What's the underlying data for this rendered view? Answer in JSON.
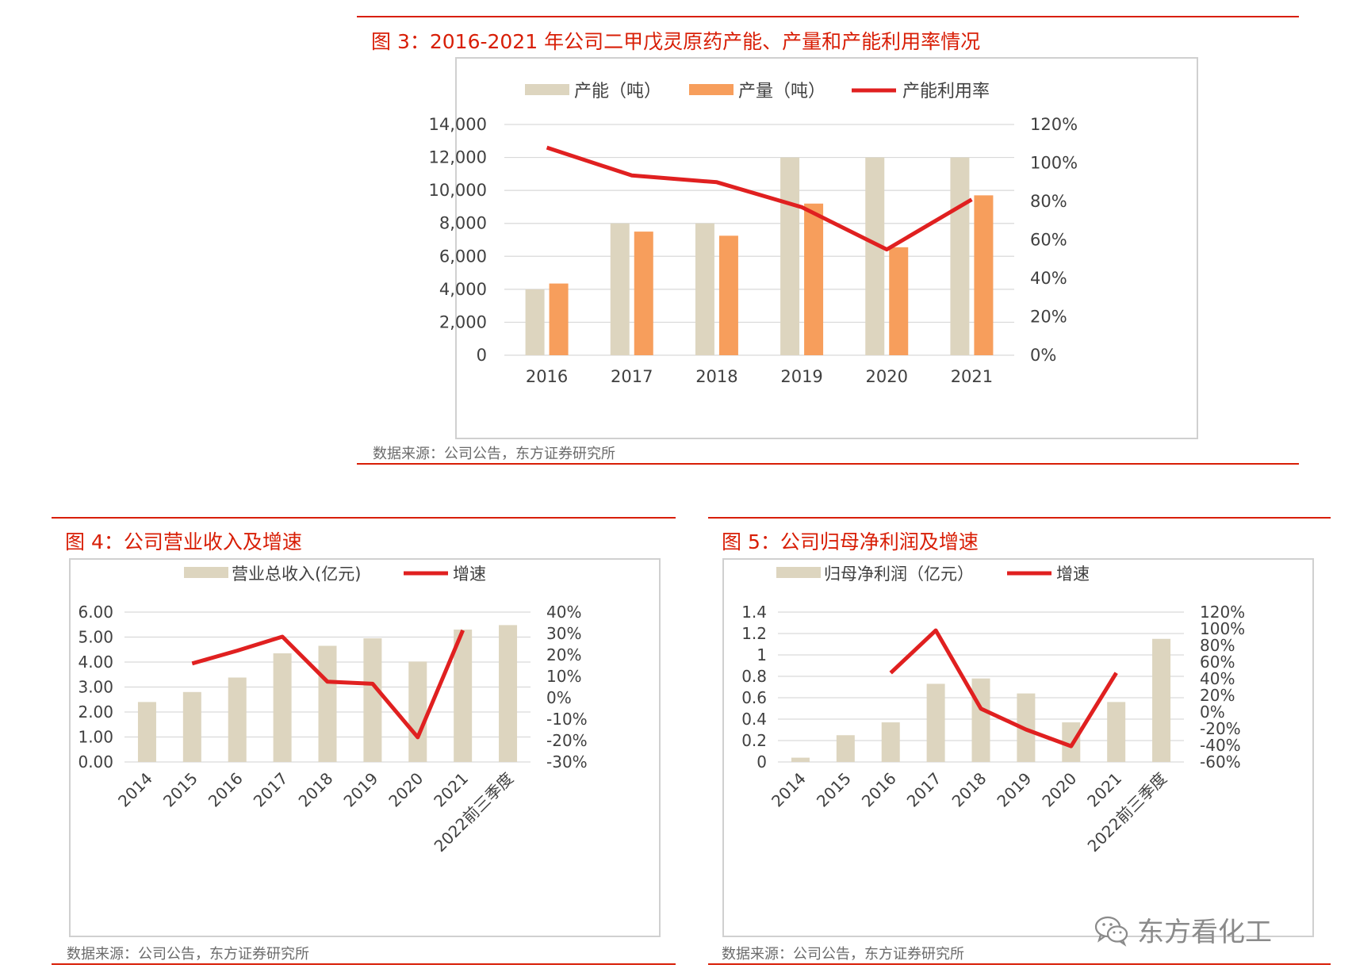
{
  "figures": [
    {
      "title": "图 3：2016-2021 年公司二甲戊灵原药产能、产量和产能利用率情况",
      "source": "数据来源：公司公告，东方证券研究所"
    },
    {
      "title": "图 4：公司营业收入及增速",
      "source": "数据来源：公司公告，东方证券研究所"
    },
    {
      "title": "图 5：公司归母净利润及增速",
      "source": "数据来源：公司公告，东方证券研究所"
    }
  ],
  "watermark": {
    "text": "东方看化工",
    "icon": "wechat-icon"
  },
  "colors": {
    "accent": "#d81e06",
    "bar_primary": "#ddd5bf",
    "bar_secondary": "#f79e5c",
    "line": "#e02020"
  },
  "chart_data": [
    {
      "type": "bar",
      "categories": [
        "2016",
        "2017",
        "2018",
        "2019",
        "2020",
        "2021"
      ],
      "series": [
        {
          "name": "产能（吨）",
          "kind": "bar",
          "axis": "left",
          "color": "#ddd5bf",
          "values": [
            4000,
            8000,
            8000,
            12000,
            12000,
            12000
          ]
        },
        {
          "name": "产量（吨）",
          "kind": "bar",
          "axis": "left",
          "color": "#f79e5c",
          "values": [
            4350,
            7500,
            7250,
            9200,
            6550,
            9700
          ]
        },
        {
          "name": "产能利用率",
          "kind": "line",
          "axis": "right",
          "color": "#e02020",
          "values": [
            108,
            93.5,
            90,
            77,
            55,
            81
          ]
        }
      ],
      "ylim": [
        0,
        14000
      ],
      "yticks": [
        "0",
        "2,000",
        "4,000",
        "6,000",
        "8,000",
        "10,000",
        "12,000",
        "14,000"
      ],
      "y2lim": [
        0,
        120
      ],
      "y2ticks": [
        "0%",
        "20%",
        "40%",
        "60%",
        "80%",
        "100%",
        "120%"
      ],
      "legend": "top",
      "grid": true
    },
    {
      "type": "bar",
      "categories": [
        "2014",
        "2015",
        "2016",
        "2017",
        "2018",
        "2019",
        "2020",
        "2021",
        "2022前三季度"
      ],
      "series": [
        {
          "name": "营业总收入(亿元)",
          "kind": "bar",
          "axis": "left",
          "color": "#ddd5bf",
          "values": [
            2.4,
            2.8,
            3.38,
            4.35,
            4.65,
            4.95,
            4.02,
            5.3,
            5.48
          ]
        },
        {
          "name": "增速",
          "kind": "line",
          "axis": "right",
          "color": "#e02020",
          "values": [
            null,
            16,
            22,
            28.5,
            7.5,
            6.5,
            -18.5,
            31.5,
            null
          ]
        }
      ],
      "ylim": [
        0,
        6
      ],
      "yticks": [
        "0.00",
        "1.00",
        "2.00",
        "3.00",
        "4.00",
        "5.00",
        "6.00"
      ],
      "y2lim": [
        -30,
        40
      ],
      "y2ticks": [
        "-30%",
        "-20%",
        "-10%",
        "0%",
        "10%",
        "20%",
        "30%",
        "40%"
      ],
      "legend": "top",
      "grid": true
    },
    {
      "type": "bar",
      "categories": [
        "2014",
        "2015",
        "2016",
        "2017",
        "2018",
        "2019",
        "2020",
        "2021",
        "2022前三季度"
      ],
      "series": [
        {
          "name": "归母净利润（亿元）",
          "kind": "bar",
          "axis": "left",
          "color": "#ddd5bf",
          "values": [
            0.04,
            0.25,
            0.37,
            0.73,
            0.78,
            0.64,
            0.37,
            0.56,
            1.15
          ]
        },
        {
          "name": "增速",
          "kind": "line",
          "axis": "right",
          "color": "#e02020",
          "values": [
            null,
            null,
            47,
            98,
            4,
            -21,
            -41,
            47,
            null
          ]
        }
      ],
      "ylim": [
        0,
        1.4
      ],
      "yticks": [
        "0",
        "0.2",
        "0.4",
        "0.6",
        "0.8",
        "1",
        "1.2",
        "1.4"
      ],
      "y2lim": [
        -60,
        120
      ],
      "y2ticks": [
        "-60%",
        "-40%",
        "-20%",
        "0%",
        "20%",
        "40%",
        "60%",
        "80%",
        "100%",
        "120%"
      ],
      "legend": "top",
      "grid": true
    }
  ]
}
